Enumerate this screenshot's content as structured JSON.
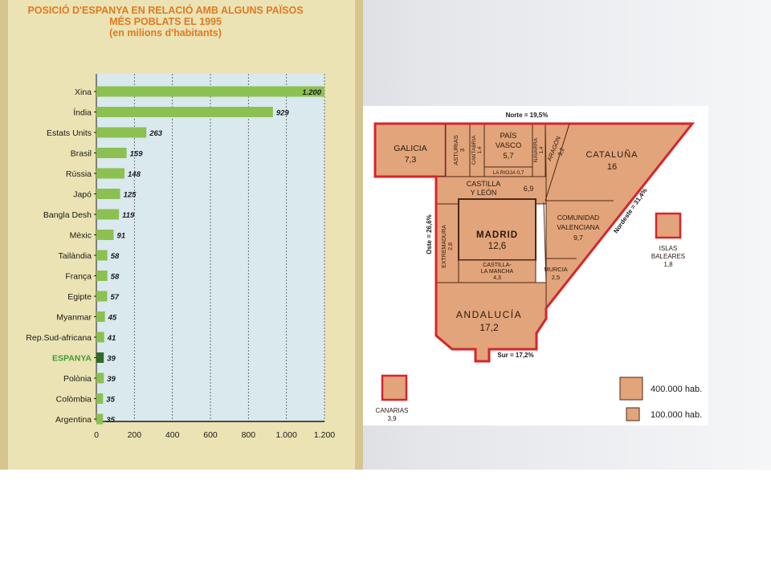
{
  "chart_data": [
    {
      "type": "bar",
      "orientation": "horizontal",
      "title": "POSICIÓ D'ESPANYA EN RELACIÓ AMB ALGUNS PAÏSOS MÉS POBLATS EL 1995",
      "subtitle": "(en milions d'habitants)",
      "title_lines": [
        "POSICIÓ D'ESPANYA EN RELACIÓ AMB ALGUNS PAÏSOS",
        "MÉS POBLATS EL 1995",
        "(en milions d'habitants)"
      ],
      "categories": [
        "Xina",
        "Índia",
        "Estats Units",
        "Brasil",
        "Rússia",
        "Japó",
        "Bangla Desh",
        "Mèxic",
        "Tailàndia",
        "França",
        "Egipte",
        "Myanmar",
        "Rep.Sud-africana",
        "ESPANYA",
        "Polònia",
        "Colòmbia",
        "Argentina"
      ],
      "values": [
        1200,
        929,
        263,
        159,
        148,
        125,
        119,
        91,
        58,
        58,
        57,
        45,
        41,
        39,
        39,
        35,
        35
      ],
      "value_labels": [
        "1.200",
        "929",
        "263",
        "159",
        "148",
        "125",
        "119",
        "91",
        "58",
        "58",
        "57",
        "45",
        "41",
        "39",
        "39",
        "35",
        "35"
      ],
      "highlight": "ESPANYA",
      "xlim": [
        0,
        1200
      ],
      "xticks": [
        0,
        200,
        400,
        600,
        800,
        1000,
        1200
      ],
      "xtick_labels": [
        "0",
        "200",
        "400",
        "600",
        "800",
        "1.000",
        "1.200"
      ],
      "grid": "vertical dashed",
      "colors": {
        "bar": "#8cc152",
        "highlight_bar": "#2f6b2a",
        "highlight_label": "#3f9c35",
        "title": "#e07a21",
        "plot_bg": "#d9e9ee"
      }
    },
    {
      "type": "cartogram",
      "regions": [
        {
          "name": "GALICIA",
          "value": "7,3"
        },
        {
          "name": "ASTURIAS",
          "value": "3"
        },
        {
          "name": "CANTABRIA",
          "value": "1,4"
        },
        {
          "name": "PAÍS VASCO",
          "value": "5,7"
        },
        {
          "name": "LA RIOJA",
          "value": "0,7"
        },
        {
          "name": "NAVARRA",
          "value": "1,4"
        },
        {
          "name": "ARAGÓN",
          "value": "3,2"
        },
        {
          "name": "CATALUÑA",
          "value": "16"
        },
        {
          "name": "CASTILLA Y LEÓN",
          "value": "6,9"
        },
        {
          "name": "MADRID",
          "value": "12,6"
        },
        {
          "name": "EXTREMADURA",
          "value": "2,8"
        },
        {
          "name": "CASTILLA-LA MANCHA",
          "value": "4,3"
        },
        {
          "name": "COMUNIDAD VALENCIANA",
          "value": "9,7"
        },
        {
          "name": "MURCIA",
          "value": "2,5"
        },
        {
          "name": "ANDALUCÍA",
          "value": "17,2"
        },
        {
          "name": "ISLAS BALEARES",
          "value": "1,8"
        },
        {
          "name": "CANARIAS",
          "value": "3,9"
        }
      ],
      "coast_labels": {
        "north": "Norte = 19,5%",
        "west": "Oste = 26,6%",
        "northeast": "Nordeste = 31,4%",
        "south": "Sur = 17,2%"
      },
      "legend": [
        "400.000 hab.",
        "100.000 hab."
      ],
      "colors": {
        "fill": "#e2a47a",
        "border": "#d7242a",
        "inner_line": "#4a2a18"
      }
    }
  ]
}
